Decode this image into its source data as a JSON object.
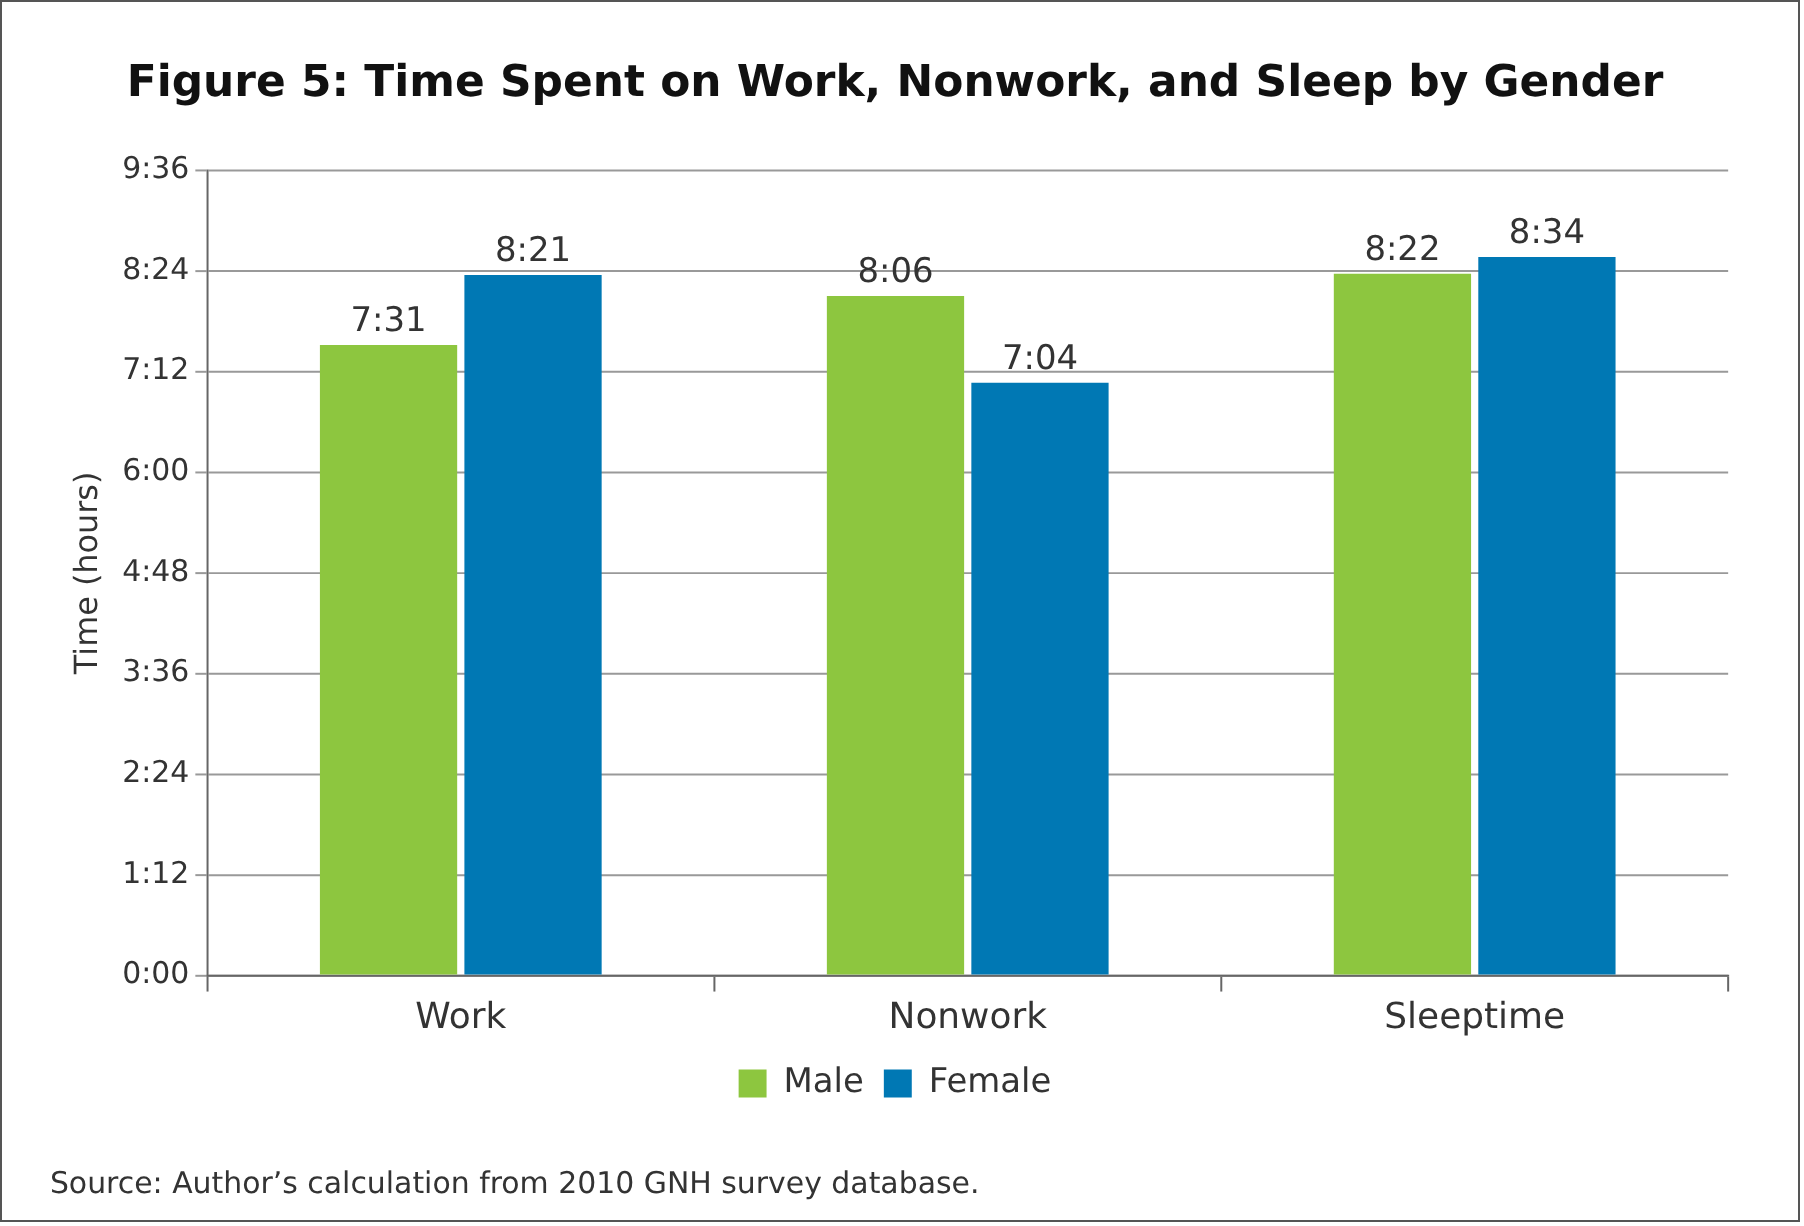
{
  "chart_data": {
    "type": "bar",
    "title": "Figure 5: Time Spent on Work, Nonwork, and Sleep by Gender",
    "ylabel": "Time (hours)",
    "categories": [
      "Work",
      "Nonwork",
      "Sleeptime"
    ],
    "series": [
      {
        "name": "Male",
        "color": "#8dc63f",
        "values": [
          7.5167,
          8.1,
          8.3667
        ],
        "value_labels": [
          "7:31",
          "8:06",
          "8:22"
        ]
      },
      {
        "name": "Female",
        "color": "#0078b4",
        "values": [
          8.35,
          7.0667,
          8.5667
        ],
        "value_labels": [
          "8:21",
          "7:04",
          "8:34"
        ]
      }
    ],
    "ylim": [
      0,
      9.6
    ],
    "yticks": [
      {
        "value": 0,
        "label": "0:00"
      },
      {
        "value": 1.2,
        "label": "1:12"
      },
      {
        "value": 2.4,
        "label": "2:24"
      },
      {
        "value": 3.6,
        "label": "3:36"
      },
      {
        "value": 4.8,
        "label": "4:48"
      },
      {
        "value": 6,
        "label": "6:00"
      },
      {
        "value": 7.2,
        "label": "7:12"
      },
      {
        "value": 8.4,
        "label": "8:24"
      },
      {
        "value": 9.6,
        "label": "9:36"
      }
    ],
    "grid": "y",
    "legend": "bottom",
    "annotations": [
      "Source: Author’s calculation from 2010 GNH survey database."
    ]
  }
}
